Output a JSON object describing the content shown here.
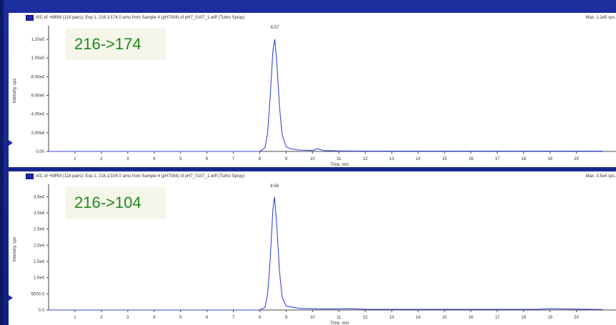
{
  "chart_data": [
    {
      "type": "line",
      "header": "XIC of +MRM (118 pairs): Exp 1, 216.1/174.0 amu from Sample 4 (pH7004) of pH7_0107_1.wiff (Turbo Spray)",
      "max_label": "Max. 1.2e5 cps.",
      "annotation": "216->174",
      "peak_label": "8.57",
      "xlabel": "Time, min",
      "ylabel": "Intensity, cps",
      "xlim": [
        0,
        21.5
      ],
      "ylim": [
        0,
        130000
      ],
      "x_ticks": [
        1,
        2,
        3,
        4,
        5,
        6,
        7,
        8,
        9,
        10,
        11,
        12,
        13,
        14,
        15,
        16,
        17,
        18,
        19,
        20
      ],
      "y_ticks": [
        {
          "v": 0,
          "l": "0.00"
        },
        {
          "v": 20000,
          "l": "2.00e4"
        },
        {
          "v": 40000,
          "l": "4.00e4"
        },
        {
          "v": 60000,
          "l": "6.00e4"
        },
        {
          "v": 80000,
          "l": "8.00e4"
        },
        {
          "v": 100000,
          "l": "1.00e5"
        },
        {
          "v": 120000,
          "l": "1.20e5"
        }
      ],
      "peak_x": 8.57,
      "series": [
        {
          "x": [
            0,
            8.0,
            8.2,
            8.3,
            8.4,
            8.5,
            8.57,
            8.65,
            8.75,
            8.85,
            9.0,
            9.2,
            9.5,
            10.0,
            10.2,
            10.4,
            11.0,
            12.0,
            21.0
          ],
          "y": [
            0,
            0,
            4000,
            20000,
            60000,
            108000,
            120000,
            95000,
            48000,
            18000,
            5000,
            2500,
            1500,
            1000,
            3000,
            1000,
            500,
            400,
            300
          ]
        }
      ]
    },
    {
      "type": "line",
      "header": "XIC of +MRM (118 pairs): Exp 1, 216.1/104.0 amu from Sample 4 (pH7004) of pH7_0107_1.wiff (Turbo Spray)",
      "max_label": "Max. 3.5e4 cps.",
      "annotation": "216->104",
      "peak_label": "8.56",
      "xlabel": "Time, min",
      "ylabel": "Intensity, cps",
      "xlim": [
        0,
        21.5
      ],
      "ylim": [
        0,
        37500
      ],
      "x_ticks": [
        1,
        2,
        3,
        4,
        5,
        6,
        7,
        8,
        9,
        10,
        11,
        12,
        13,
        14,
        15,
        16,
        17,
        18,
        19,
        20
      ],
      "y_ticks": [
        {
          "v": 0,
          "l": "0.0"
        },
        {
          "v": 5000,
          "l": "5000.0"
        },
        {
          "v": 10000,
          "l": "1.0e4"
        },
        {
          "v": 15000,
          "l": "1.5e4"
        },
        {
          "v": 20000,
          "l": "2.0e4"
        },
        {
          "v": 25000,
          "l": "2.5e4"
        },
        {
          "v": 30000,
          "l": "3.0e4"
        },
        {
          "v": 35000,
          "l": "3.5e4"
        }
      ],
      "peak_x": 8.56,
      "series": [
        {
          "x": [
            0,
            8.0,
            8.2,
            8.3,
            8.4,
            8.5,
            8.56,
            8.65,
            8.75,
            8.85,
            9.0,
            9.5,
            10.0,
            10.5,
            11.5,
            12.0,
            13.0,
            18.5,
            19.0,
            21.0
          ],
          "y": [
            0,
            0,
            800,
            5000,
            16000,
            31000,
            35000,
            26000,
            12000,
            4000,
            1200,
            500,
            400,
            300,
            400,
            250,
            200,
            200,
            400,
            150
          ]
        }
      ]
    }
  ]
}
